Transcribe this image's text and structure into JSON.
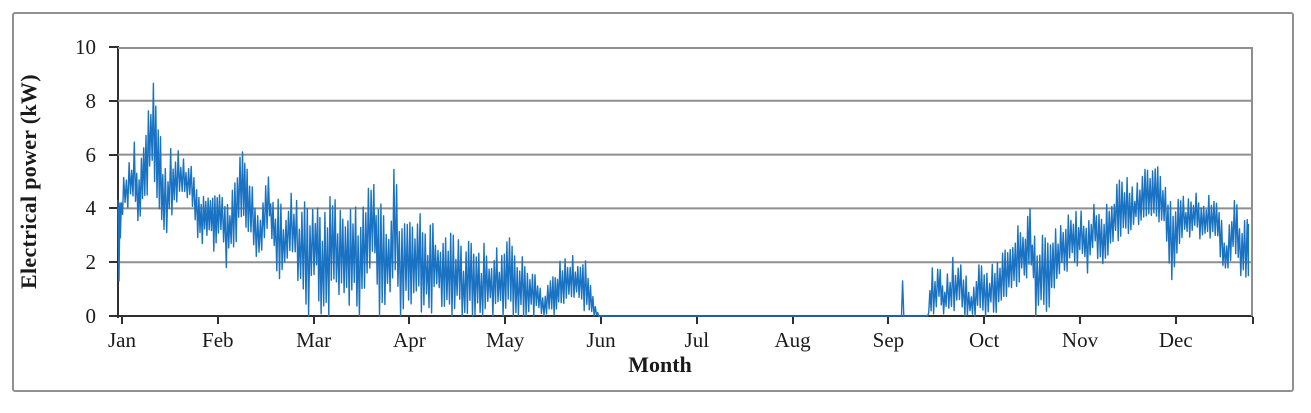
{
  "chart_data": {
    "type": "line",
    "title": "",
    "xlabel": "Month",
    "ylabel": "Electrical power (kW)",
    "x_tick_labels": [
      "Jan",
      "Feb",
      "Mar",
      "Apr",
      "May",
      "Jun",
      "Jul",
      "Aug",
      "Sep",
      "Oct",
      "Nov",
      "Dec"
    ],
    "y_ticks": [
      0,
      2,
      4,
      6,
      8,
      10
    ],
    "ylim": [
      0,
      10
    ],
    "x_range_months": [
      0,
      11.8
    ],
    "grid": "horizontal gridlines every 2 kW",
    "legend": "none",
    "colors": {
      "series": "#1a73c2",
      "grid": "#8f8f8f",
      "axis": "#2f2f2f",
      "frame": "#909090",
      "text": "#1a1a1a"
    },
    "series": [
      {
        "name": "Electrical power (kW)",
        "color": "#1a73c2",
        "max_value_kw": 8.65,
        "zero_output_span_months": [
          5.02,
          8.45
        ],
        "start_points": [
          [
            0.0,
            4.3
          ],
          [
            0.01,
            1.3
          ],
          [
            0.02,
            4.2
          ]
        ],
        "end_point": [
          11.8,
          3.4
        ],
        "isolated_spikes": [
          [
            8.19,
            1.3
          ]
        ],
        "envelope_m_lo_hi": [
          [
            0.0,
            1.3,
            4.3
          ],
          [
            0.06,
            3.9,
            5.3
          ],
          [
            0.13,
            4.1,
            5.8
          ],
          [
            0.17,
            4.0,
            6.8
          ],
          [
            0.22,
            3.4,
            5.1
          ],
          [
            0.28,
            4.2,
            7.0
          ],
          [
            0.33,
            4.8,
            8.0
          ],
          [
            0.37,
            5.0,
            8.65
          ],
          [
            0.42,
            4.2,
            7.9
          ],
          [
            0.48,
            2.9,
            5.2
          ],
          [
            0.55,
            3.4,
            6.6
          ],
          [
            0.6,
            4.2,
            6.3
          ],
          [
            0.67,
            4.4,
            5.9
          ],
          [
            0.75,
            4.4,
            5.7
          ],
          [
            0.82,
            3.0,
            5.0
          ],
          [
            0.88,
            2.6,
            4.4
          ],
          [
            0.94,
            3.1,
            4.6
          ],
          [
            1.0,
            2.4,
            4.4
          ],
          [
            1.06,
            3.2,
            4.7
          ],
          [
            1.13,
            1.8,
            4.0
          ],
          [
            1.22,
            2.6,
            5.0
          ],
          [
            1.3,
            3.6,
            6.35
          ],
          [
            1.36,
            3.1,
            5.4
          ],
          [
            1.43,
            2.3,
            4.4
          ],
          [
            1.5,
            1.9,
            4.3
          ],
          [
            1.57,
            3.6,
            5.2
          ],
          [
            1.63,
            2.2,
            4.4
          ],
          [
            1.7,
            0.9,
            4.3
          ],
          [
            1.78,
            2.4,
            4.6
          ],
          [
            1.85,
            2.2,
            4.5
          ],
          [
            1.92,
            0.0,
            4.4
          ],
          [
            1.99,
            0.0,
            4.0
          ],
          [
            2.06,
            1.4,
            4.3
          ],
          [
            2.12,
            0.0,
            3.6
          ],
          [
            2.2,
            0.0,
            4.4
          ],
          [
            2.28,
            1.2,
            4.6
          ],
          [
            2.36,
            0.0,
            3.4
          ],
          [
            2.44,
            0.6,
            4.3
          ],
          [
            2.52,
            0.0,
            3.8
          ],
          [
            2.6,
            1.5,
            4.6
          ],
          [
            2.67,
            2.2,
            5.3
          ],
          [
            2.73,
            0.0,
            4.3
          ],
          [
            2.8,
            0.4,
            3.6
          ],
          [
            2.88,
            1.4,
            5.45
          ],
          [
            2.95,
            0.0,
            4.3
          ],
          [
            3.02,
            0.0,
            3.4
          ],
          [
            3.1,
            0.9,
            4.0
          ],
          [
            3.18,
            0.0,
            3.7
          ],
          [
            3.26,
            0.0,
            3.4
          ],
          [
            3.34,
            0.7,
            3.5
          ],
          [
            3.42,
            0.0,
            2.9
          ],
          [
            3.5,
            0.0,
            3.3
          ],
          [
            3.58,
            0.0,
            2.6
          ],
          [
            3.66,
            0.0,
            2.9
          ],
          [
            3.74,
            0.0,
            2.3
          ],
          [
            3.82,
            0.0,
            2.7
          ],
          [
            3.9,
            0.0,
            2.4
          ],
          [
            3.98,
            0.0,
            2.6
          ],
          [
            4.06,
            0.0,
            3.1
          ],
          [
            4.14,
            0.0,
            2.5
          ],
          [
            4.22,
            0.0,
            2.2
          ],
          [
            4.3,
            0.0,
            1.6
          ],
          [
            4.38,
            0.0,
            1.5
          ],
          [
            4.46,
            0.0,
            0.9
          ],
          [
            4.54,
            0.0,
            1.6
          ],
          [
            4.6,
            0.2,
            2.0
          ],
          [
            4.68,
            0.6,
            2.2
          ],
          [
            4.76,
            0.7,
            2.25
          ],
          [
            4.84,
            0.3,
            2.1
          ],
          [
            4.92,
            0.0,
            2.0
          ],
          [
            4.97,
            0.0,
            0.5
          ],
          [
            5.02,
            0.0,
            0.0
          ],
          [
            8.14,
            0.0,
            0.0
          ],
          [
            8.23,
            0.0,
            0.0
          ],
          [
            8.45,
            0.0,
            0.0
          ],
          [
            8.5,
            0.0,
            1.9
          ],
          [
            8.57,
            0.4,
            1.8
          ],
          [
            8.63,
            0.0,
            1.4
          ],
          [
            8.7,
            0.0,
            2.2
          ],
          [
            8.77,
            0.5,
            2.1
          ],
          [
            8.84,
            0.0,
            1.6
          ],
          [
            8.92,
            0.0,
            0.9
          ],
          [
            9.0,
            0.0,
            2.1
          ],
          [
            9.07,
            0.0,
            2.0
          ],
          [
            9.14,
            0.0,
            1.9
          ],
          [
            9.22,
            0.4,
            2.3
          ],
          [
            9.3,
            0.9,
            2.6
          ],
          [
            9.38,
            1.1,
            3.3
          ],
          [
            9.46,
            1.3,
            3.6
          ],
          [
            9.52,
            1.6,
            4.0
          ],
          [
            9.58,
            0.0,
            3.1
          ],
          [
            9.65,
            0.0,
            3.0
          ],
          [
            9.72,
            0.3,
            2.9
          ],
          [
            9.8,
            1.4,
            3.3
          ],
          [
            9.88,
            1.6,
            3.6
          ],
          [
            9.96,
            1.8,
            3.9
          ],
          [
            10.04,
            1.9,
            4.0
          ],
          [
            10.12,
            1.6,
            3.4
          ],
          [
            10.2,
            2.3,
            4.3
          ],
          [
            10.28,
            1.8,
            3.7
          ],
          [
            10.36,
            2.5,
            4.6
          ],
          [
            10.44,
            2.8,
            5.0
          ],
          [
            10.52,
            3.0,
            5.3
          ],
          [
            10.6,
            3.2,
            4.7
          ],
          [
            10.68,
            3.5,
            5.3
          ],
          [
            10.76,
            3.8,
            5.6
          ],
          [
            10.84,
            3.6,
            5.65
          ],
          [
            10.92,
            3.3,
            5.0
          ],
          [
            11.0,
            1.3,
            4.1
          ],
          [
            11.08,
            2.7,
            4.6
          ],
          [
            11.16,
            2.9,
            4.3
          ],
          [
            11.24,
            3.0,
            4.6
          ],
          [
            11.32,
            2.8,
            4.4
          ],
          [
            11.4,
            2.9,
            4.5
          ],
          [
            11.48,
            2.6,
            4.2
          ],
          [
            11.56,
            1.4,
            2.9
          ],
          [
            11.64,
            2.4,
            4.35
          ],
          [
            11.72,
            1.5,
            4.0
          ],
          [
            11.8,
            1.3,
            3.5
          ]
        ]
      }
    ]
  }
}
